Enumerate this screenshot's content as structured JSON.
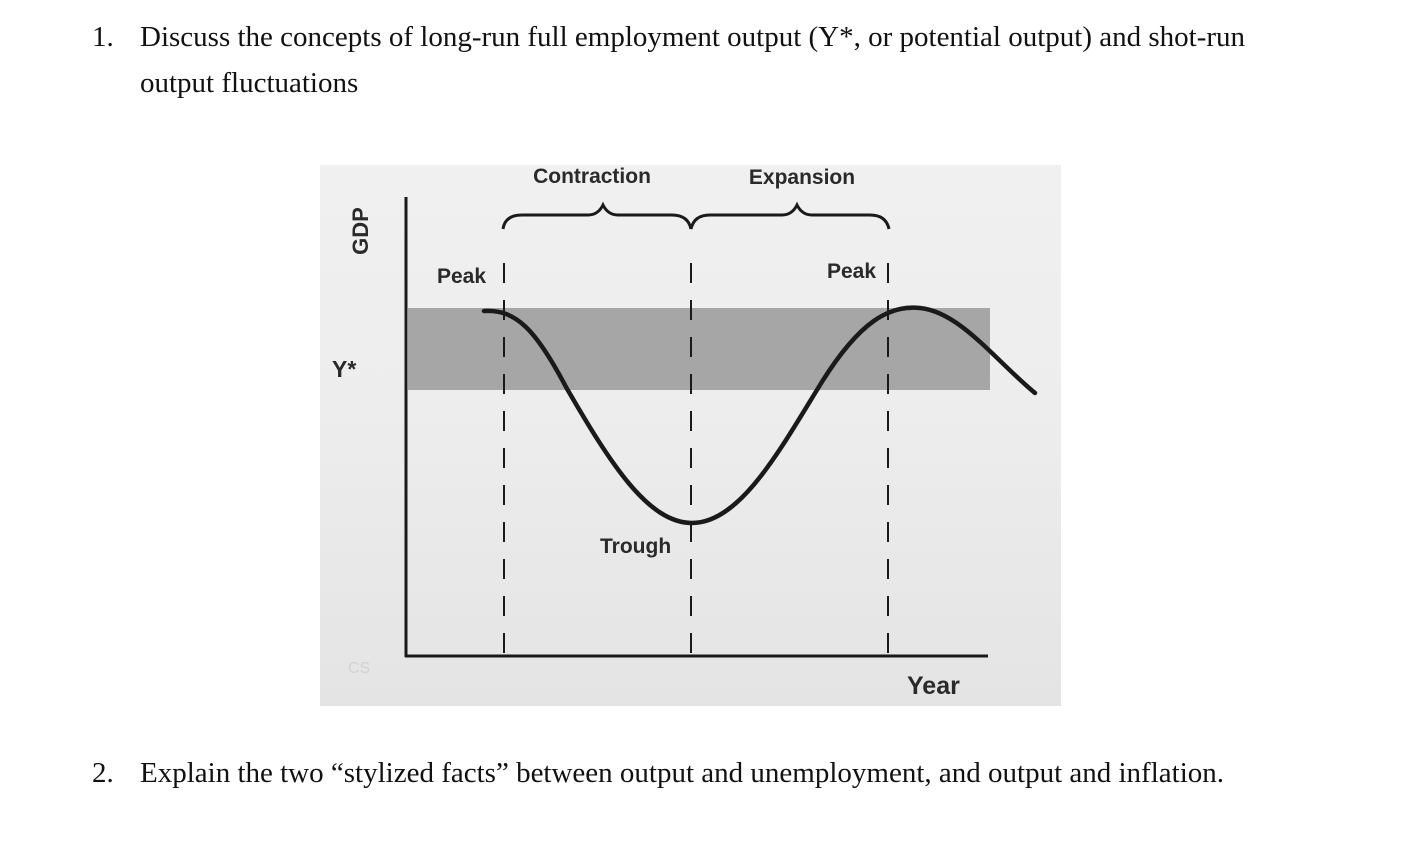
{
  "questions": [
    {
      "number": "1.",
      "text": "Discuss the concepts of long-run full employment output (Y*, or potential output) and shot-run output fluctuations"
    },
    {
      "number": "2.",
      "text": "Explain the two “stylized facts” between output and unemployment, and output and inflation."
    }
  ],
  "figure": {
    "y_axis_label": "GDP",
    "potential_label": "Y*",
    "x_axis_label": "Year",
    "phase_labels": {
      "contraction": "Contraction",
      "expansion": "Expansion"
    },
    "point_labels": {
      "peak_left": "Peak",
      "trough": "Trough",
      "peak_right": "Peak"
    },
    "watermark": "CS",
    "colors": {
      "band": "#a6a6a6",
      "curve": "#1a1a1a",
      "background": "#ececec"
    }
  }
}
